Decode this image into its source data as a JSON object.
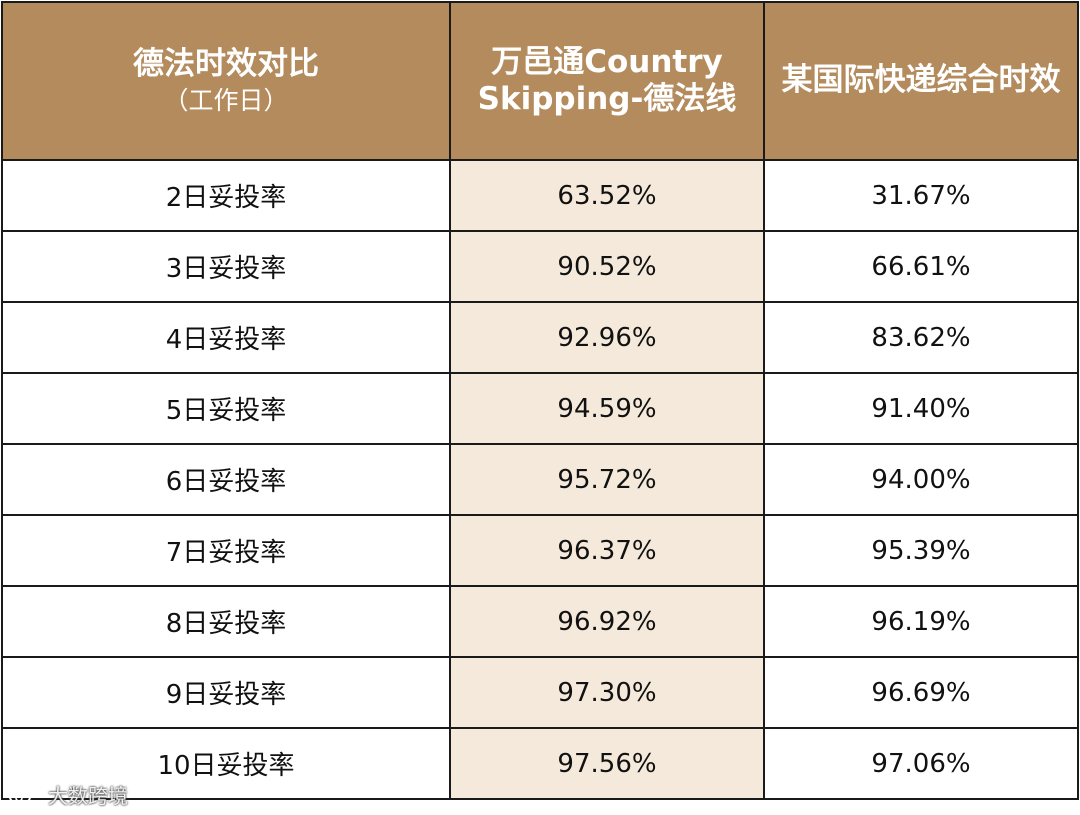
{
  "table": {
    "headers": [
      {
        "title": "德法时效对比",
        "subtitle": "（工作日）"
      },
      {
        "title_line1": "万邑通Country",
        "title_line2": "Skipping-德法线"
      },
      {
        "title": "某国际快递综合时效"
      }
    ],
    "rows": [
      {
        "label": "2日妥投率",
        "winit": "63.52%",
        "express": "31.67%"
      },
      {
        "label": "3日妥投率",
        "winit": "90.52%",
        "express": "66.61%"
      },
      {
        "label": "4日妥投率",
        "winit": "92.96%",
        "express": "83.62%"
      },
      {
        "label": "5日妥投率",
        "winit": "94.59%",
        "express": "91.40%"
      },
      {
        "label": "6日妥投率",
        "winit": "95.72%",
        "express": "94.00%"
      },
      {
        "label": "7日妥投率",
        "winit": "96.37%",
        "express": "95.39%"
      },
      {
        "label": "8日妥投率",
        "winit": "96.92%",
        "express": "96.19%"
      },
      {
        "label": "9日妥投率",
        "winit": "97.30%",
        "express": "96.69%"
      },
      {
        "label": "10日妥投率",
        "winit": "97.56%",
        "express": "97.06%"
      }
    ]
  },
  "watermark": {
    "text": "大数跨境",
    "icon": "weibo-logo-icon"
  },
  "colors": {
    "header_bg": "#b48b5d",
    "highlight_col": "#f4e9db",
    "border": "#1a1a1a"
  }
}
